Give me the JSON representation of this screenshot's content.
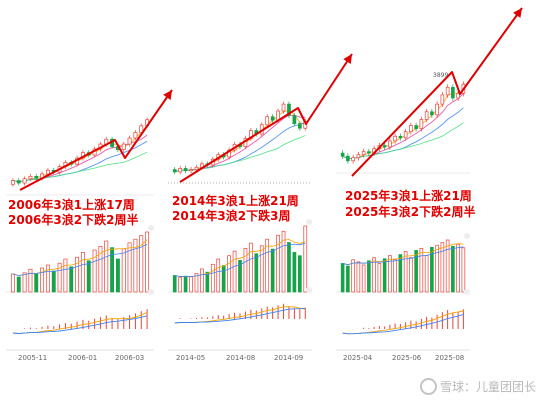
{
  "watermark": {
    "platform": "雪球",
    "separator": "：",
    "author": "儿童团团长"
  },
  "chart_data": [
    {
      "type": "candlestick",
      "x_ticks": [
        "2005-11",
        "2006-01",
        "2006-03"
      ],
      "annotations": [
        "2006年3浪1上涨17周",
        "2006年3浪2下跌2周半"
      ],
      "candles": [
        [
          1.0,
          1.06
        ],
        [
          1.06,
          1.02
        ],
        [
          1.02,
          1.09
        ],
        [
          1.09,
          1.13
        ],
        [
          1.13,
          1.1
        ],
        [
          1.1,
          1.17
        ],
        [
          1.17,
          1.23
        ],
        [
          1.23,
          1.2
        ],
        [
          1.2,
          1.29
        ],
        [
          1.29,
          1.36
        ],
        [
          1.36,
          1.33
        ],
        [
          1.33,
          1.43
        ],
        [
          1.43,
          1.52
        ],
        [
          1.52,
          1.48
        ],
        [
          1.48,
          1.58
        ],
        [
          1.58,
          1.66
        ],
        [
          1.66,
          1.74
        ],
        [
          1.74,
          1.62
        ],
        [
          1.62,
          1.57
        ],
        [
          1.57,
          1.66
        ],
        [
          1.66,
          1.76
        ],
        [
          1.76,
          1.85
        ],
        [
          1.85,
          1.96
        ],
        [
          1.96,
          2.06
        ]
      ],
      "volume": [
        0.3,
        0.25,
        0.32,
        0.38,
        0.3,
        0.4,
        0.45,
        0.35,
        0.48,
        0.55,
        0.42,
        0.58,
        0.66,
        0.52,
        0.7,
        0.76,
        0.85,
        0.74,
        0.55,
        0.72,
        0.82,
        0.88,
        0.94,
        1.0
      ]
    },
    {
      "type": "candlestick",
      "x_ticks": [
        "2014-05",
        "2014-08",
        "2014-09"
      ],
      "annotations": [
        "2014年3浪1上涨21周",
        "2014年3浪2下跌3周"
      ],
      "candles": [
        [
          1.0,
          0.98
        ],
        [
          0.98,
          1.01
        ],
        [
          1.01,
          0.99
        ],
        [
          0.99,
          1.0
        ],
        [
          1.0,
          1.02
        ],
        [
          1.02,
          1.05
        ],
        [
          1.05,
          1.04
        ],
        [
          1.04,
          1.09
        ],
        [
          1.09,
          1.13
        ],
        [
          1.13,
          1.11
        ],
        [
          1.11,
          1.17
        ],
        [
          1.17,
          1.22
        ],
        [
          1.22,
          1.2
        ],
        [
          1.2,
          1.27
        ],
        [
          1.27,
          1.34
        ],
        [
          1.34,
          1.31
        ],
        [
          1.31,
          1.39
        ],
        [
          1.39,
          1.46
        ],
        [
          1.46,
          1.43
        ],
        [
          1.43,
          1.51
        ],
        [
          1.51,
          1.57
        ],
        [
          1.57,
          1.47
        ],
        [
          1.47,
          1.4
        ],
        [
          1.4,
          1.36
        ],
        [
          1.36,
          1.42
        ]
      ],
      "volume": [
        0.25,
        0.22,
        0.24,
        0.23,
        0.28,
        0.35,
        0.3,
        0.42,
        0.5,
        0.4,
        0.55,
        0.62,
        0.48,
        0.66,
        0.74,
        0.58,
        0.7,
        0.8,
        0.65,
        0.86,
        0.92,
        0.75,
        0.6,
        0.55,
        1.0
      ]
    },
    {
      "type": "candlestick",
      "x_ticks": [
        "2025-04",
        "2025-06",
        "2025-08"
      ],
      "annotations": [
        "2025年3浪1上涨21周",
        "2025年3浪2下跌2周半"
      ],
      "price_label": "3899",
      "candles": [
        [
          1.02,
          1.0
        ],
        [
          1.0,
          0.97
        ],
        [
          0.97,
          0.99
        ],
        [
          0.99,
          1.01
        ],
        [
          1.01,
          1.03
        ],
        [
          1.03,
          1.02
        ],
        [
          1.02,
          1.05
        ],
        [
          1.05,
          1.07
        ],
        [
          1.07,
          1.06
        ],
        [
          1.06,
          1.1
        ],
        [
          1.1,
          1.13
        ],
        [
          1.13,
          1.12
        ],
        [
          1.12,
          1.16
        ],
        [
          1.16,
          1.2
        ],
        [
          1.2,
          1.18
        ],
        [
          1.18,
          1.24
        ],
        [
          1.24,
          1.29
        ],
        [
          1.29,
          1.27
        ],
        [
          1.27,
          1.34
        ],
        [
          1.34,
          1.4
        ],
        [
          1.4,
          1.45
        ],
        [
          1.45,
          1.38
        ],
        [
          1.38,
          1.41
        ],
        [
          1.41,
          1.47
        ]
      ],
      "volume": [
        0.55,
        0.5,
        0.62,
        0.58,
        0.52,
        0.6,
        0.66,
        0.55,
        0.64,
        0.7,
        0.62,
        0.72,
        0.78,
        0.66,
        0.8,
        0.84,
        0.7,
        0.86,
        0.9,
        0.95,
        1.0,
        0.88,
        0.92,
        0.85
      ]
    }
  ]
}
